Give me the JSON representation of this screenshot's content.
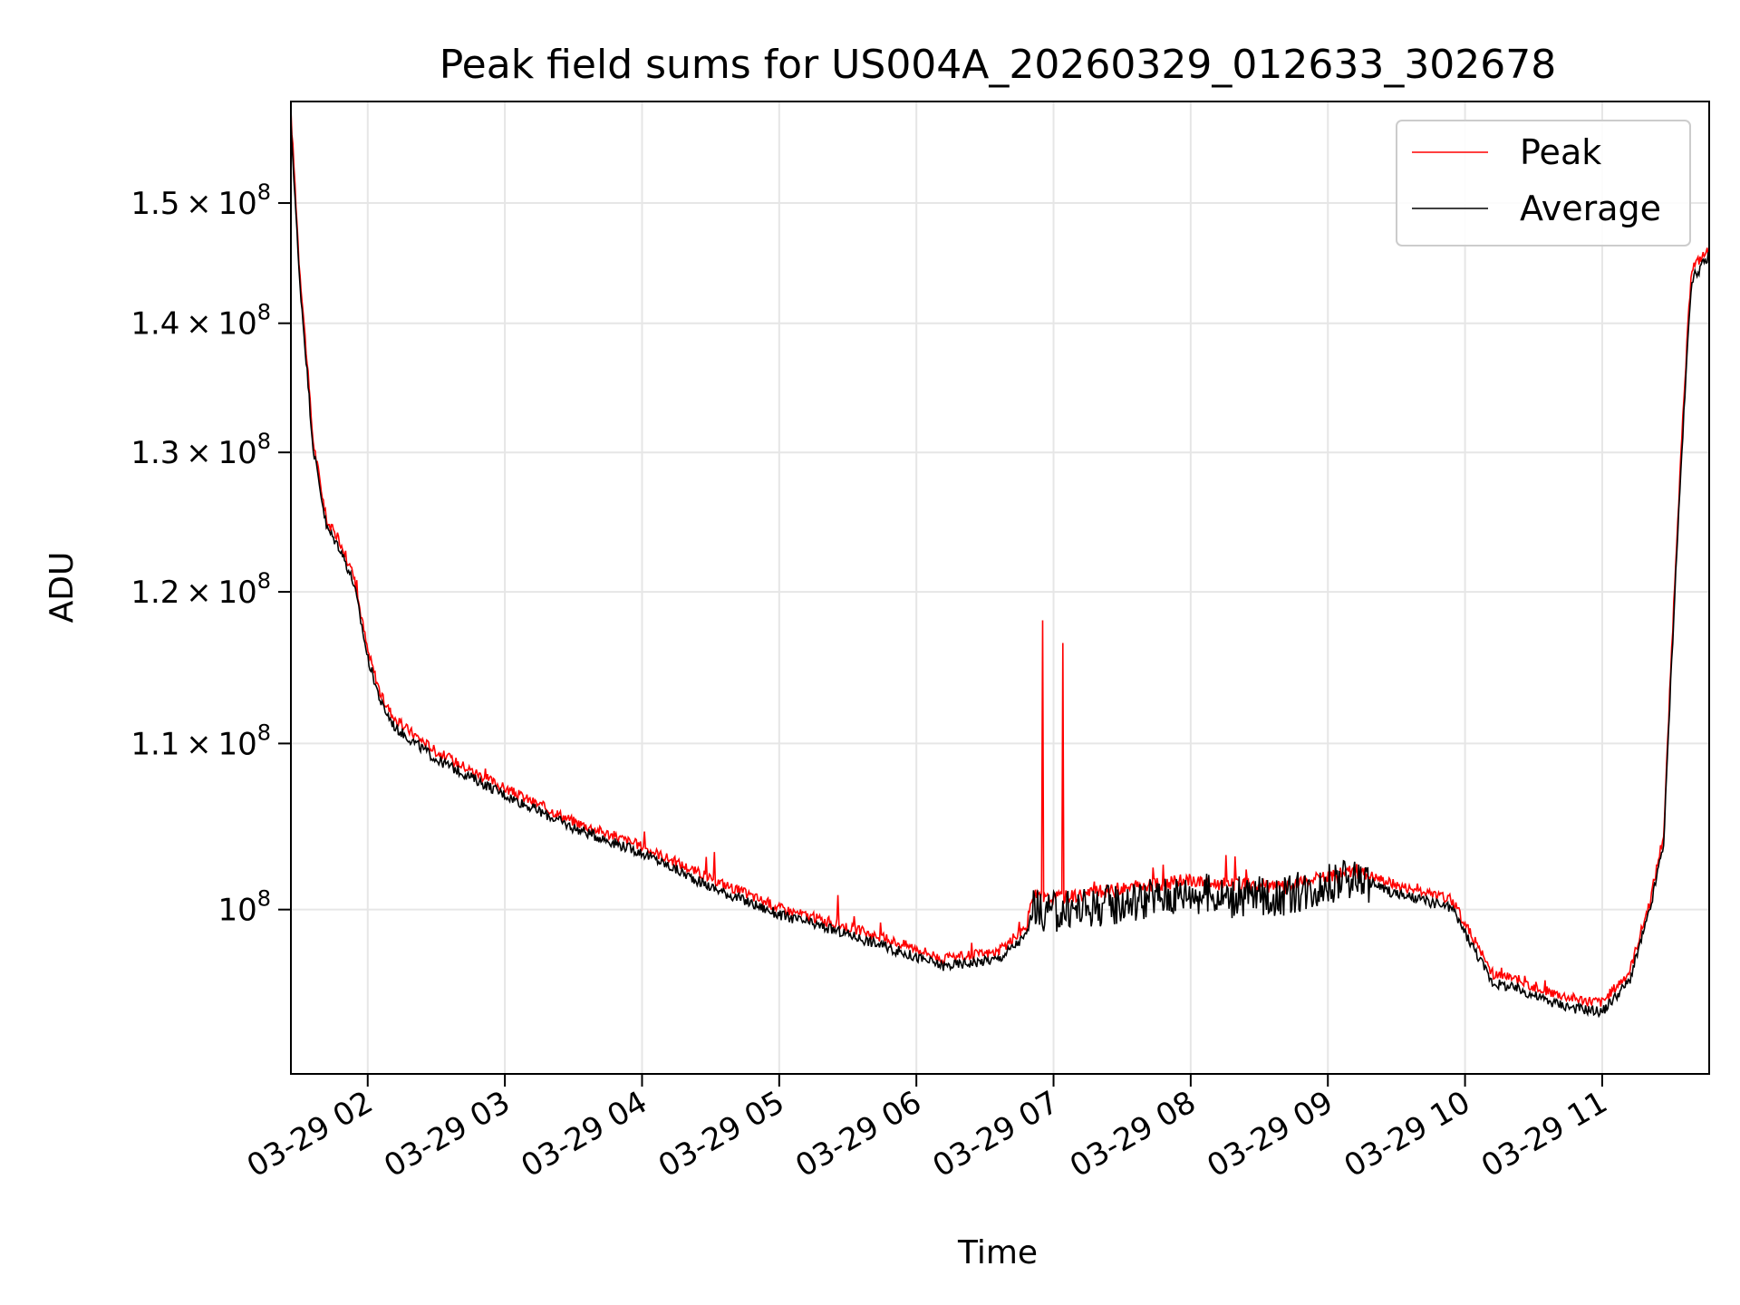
{
  "chart_data": {
    "type": "line",
    "title": "Peak field sums for US004A_20260329_012633_302678",
    "xlabel": "Time",
    "ylabel": "ADU",
    "yscale": "log",
    "ylim": [
      91000000,
      159000000
    ],
    "xlim_hours": [
      1.44,
      11.78
    ],
    "grid": true,
    "legend_position": "top-right",
    "x_tick_hours": [
      2,
      3,
      4,
      5,
      6,
      7,
      8,
      9,
      10,
      11
    ],
    "x_tick_labels": [
      "03-29 02",
      "03-29 03",
      "03-29 04",
      "03-29 05",
      "03-29 06",
      "03-29 07",
      "03-29 08",
      "03-29 09",
      "03-29 10",
      "03-29 11"
    ],
    "y_ticks": [
      {
        "value": 150000000,
        "mantissa": "1.5",
        "exp": "8"
      },
      {
        "value": 140000000,
        "mantissa": "1.4",
        "exp": "8"
      },
      {
        "value": 130000000,
        "mantissa": "1.3",
        "exp": "8"
      },
      {
        "value": 120000000,
        "mantissa": "1.2",
        "exp": "8"
      },
      {
        "value": 110000000,
        "mantissa": "1.1",
        "exp": "8"
      },
      {
        "value": 100000000,
        "mantissa": "",
        "exp": "8"
      }
    ],
    "times_label": "hours",
    "hours": [
      1.44,
      1.5,
      1.6,
      1.7,
      1.8,
      1.9,
      2.0,
      2.1,
      2.2,
      2.5,
      3.0,
      3.5,
      4.0,
      4.5,
      5.0,
      5.5,
      6.0,
      6.2,
      6.6,
      6.8,
      6.85,
      6.95,
      7.5,
      8.0,
      8.3,
      8.7,
      9.0,
      9.2,
      9.5,
      9.9,
      10.2,
      10.4,
      10.6,
      10.8,
      11.0,
      11.2,
      11.35,
      11.45,
      11.55,
      11.65,
      11.78
    ],
    "series": [
      {
        "name": "Peak",
        "color": "#ff0000",
        "values": [
          158000000,
          145000000,
          131000000,
          125000000,
          123500000,
          121000000,
          116000000,
          113000000,
          111500000,
          109500000,
          107200000,
          105200000,
          103700000,
          101800000,
          100100000,
          99000000,
          97800000,
          97200000,
          97600000,
          99000000,
          100800000,
          100600000,
          101200000,
          101700000,
          101400000,
          101300000,
          101900000,
          102300000,
          101400000,
          100600000,
          96400000,
          96000000,
          95400000,
          95000000,
          94800000,
          96500000,
          100500000,
          104500000,
          125000000,
          144500000,
          146000000
        ]
      },
      {
        "name": "Average",
        "color": "#000000",
        "values": [
          157000000,
          144000000,
          130500000,
          124500000,
          123000000,
          120500000,
          115500000,
          112500000,
          111000000,
          109000000,
          106800000,
          104800000,
          103300000,
          101300000,
          99700000,
          98600000,
          97300000,
          96800000,
          97200000,
          98500000,
          100000000,
          99800000,
          100400000,
          101000000,
          100700000,
          100800000,
          101500000,
          101900000,
          100900000,
          100100000,
          95900000,
          95500000,
          94900000,
          94500000,
          94300000,
          96000000,
          100000000,
          104000000,
          124000000,
          143500000,
          145500000
        ]
      }
    ]
  }
}
